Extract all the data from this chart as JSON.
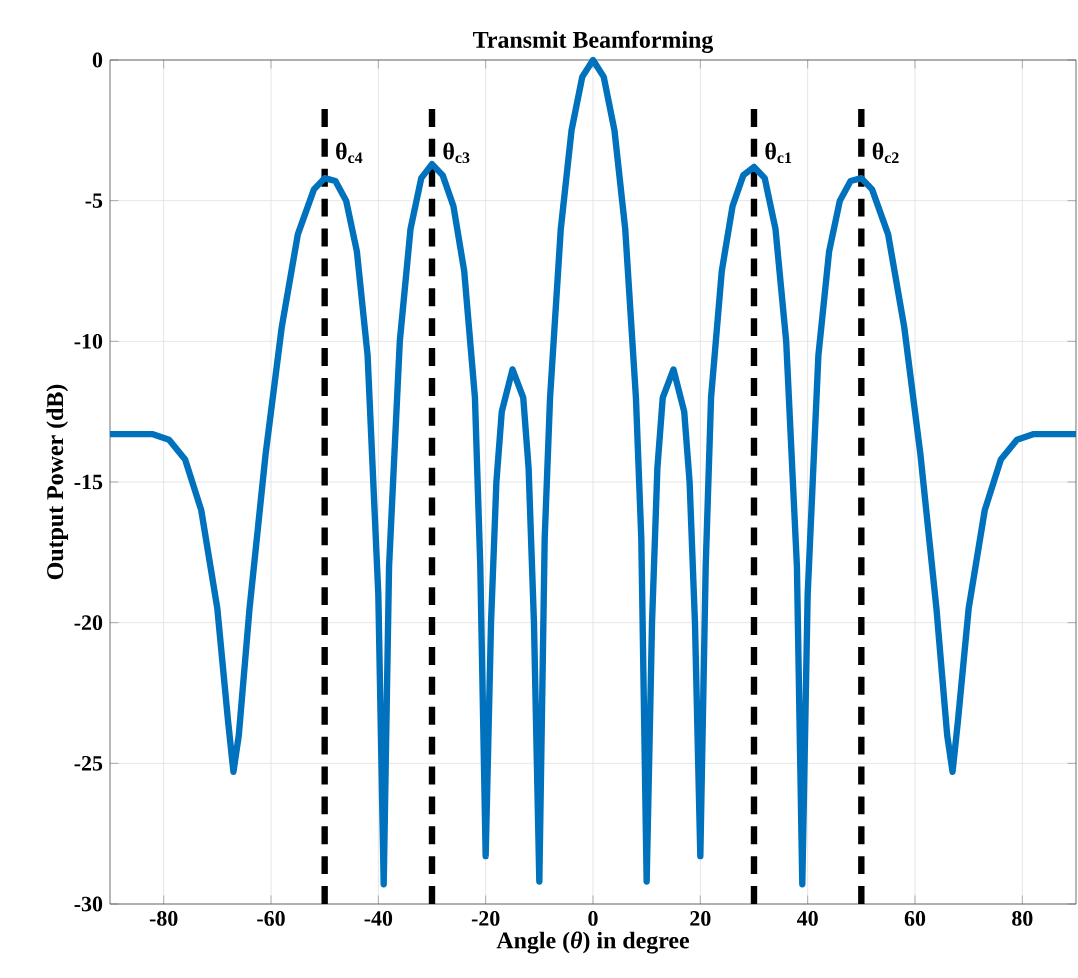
{
  "chart_data": {
    "type": "line",
    "title": "Transmit Beamforming",
    "xlabel": "Angle  (*θ*) in degree",
    "ylabel": "Output Power (dB)",
    "xlim": [
      -90,
      90
    ],
    "ylim": [
      -30,
      0
    ],
    "xticks": [
      -80,
      -60,
      -40,
      -20,
      0,
      20,
      40,
      60,
      80
    ],
    "yticks": [
      -30,
      -25,
      -20,
      -15,
      -10,
      -5,
      0
    ],
    "grid": true,
    "marker": "none",
    "line_style": "solid",
    "series": [
      {
        "color": "#0072bd",
        "x": [
          -90,
          -82,
          -79,
          -76,
          -73,
          -70,
          -68,
          -67,
          -66,
          -64,
          -61,
          -58,
          -55,
          -52,
          -50,
          -48,
          -46,
          -44,
          -42,
          -40,
          -39,
          -38,
          -36,
          -34,
          -32,
          -30,
          -28,
          -26,
          -24,
          -22,
          -21,
          -20,
          -19,
          -18,
          -17,
          -15,
          -13,
          -12,
          -11,
          -10,
          -9,
          -8,
          -6,
          -4,
          -2,
          0,
          2,
          4,
          6,
          8,
          9,
          10,
          11,
          12,
          13,
          15,
          17,
          18,
          19,
          20,
          21,
          22,
          24,
          26,
          28,
          30,
          32,
          34,
          36,
          38,
          39,
          40,
          42,
          44,
          46,
          48,
          50,
          52,
          55,
          58,
          61,
          64,
          66,
          67,
          68,
          70,
          73,
          76,
          79,
          82,
          90
        ],
        "values": [
          -13.3,
          -13.3,
          -13.5,
          -14.2,
          -16,
          -19.5,
          -23.5,
          -25.3,
          -24,
          -19.5,
          -14,
          -9.5,
          -6.2,
          -4.6,
          -4.2,
          -4.3,
          -5,
          -6.8,
          -10.5,
          -19,
          -29.3,
          -18,
          -10,
          -6,
          -4.2,
          -3.7,
          -4.1,
          -5.2,
          -7.5,
          -12,
          -18,
          -28.3,
          -20,
          -15,
          -12.5,
          -11,
          -12,
          -14.5,
          -20,
          -29.2,
          -17,
          -12,
          -6,
          -2.5,
          -0.6,
          0,
          -0.6,
          -2.5,
          -6,
          -12,
          -17,
          -29.2,
          -20,
          -14.5,
          -12,
          -11,
          -12.5,
          -15,
          -20,
          -28.3,
          -18,
          -12,
          -7.5,
          -5.2,
          -4.1,
          -3.8,
          -4.2,
          -6,
          -10,
          -18,
          -29.3,
          -19,
          -10.5,
          -6.8,
          -5,
          -4.3,
          -4.2,
          -4.6,
          -6.2,
          -9.5,
          -14,
          -19.5,
          -24,
          -25.3,
          -23.5,
          -19.5,
          -16,
          -14.2,
          -13.5,
          -13.3,
          -13.3
        ]
      }
    ],
    "ref_lines": [
      {
        "axis": "x",
        "value": 30,
        "label": "θ$_{c1}$",
        "color": "#000000",
        "line_style": "dashed"
      },
      {
        "axis": "x",
        "value": 50,
        "label": "θ$_{c2}$",
        "color": "#000000",
        "line_style": "dashed"
      },
      {
        "axis": "x",
        "value": -30,
        "label": "θ$_{c3}$",
        "color": "#000000",
        "line_style": "dashed"
      },
      {
        "axis": "x",
        "value": -50,
        "label": "θ$_{c4}$",
        "color": "#000000",
        "line_style": "dashed"
      }
    ]
  }
}
